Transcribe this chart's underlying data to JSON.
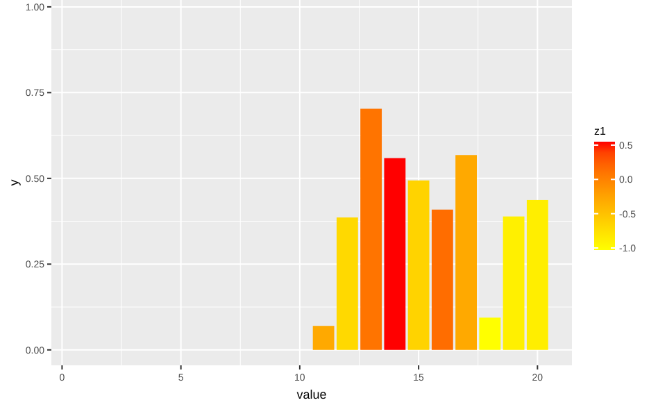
{
  "chart_data": {
    "type": "bar",
    "xlabel": "value",
    "ylabel": "y",
    "clabel": "z1",
    "x": [
      11,
      12,
      13,
      14,
      15,
      16,
      17,
      18,
      19,
      20
    ],
    "values": [
      0.07,
      0.386,
      0.703,
      0.559,
      0.494,
      0.409,
      0.568,
      0.094,
      0.389,
      0.437
    ],
    "cvalues": [
      -0.3,
      -0.7,
      0.1,
      0.55,
      -0.65,
      0.15,
      -0.3,
      -1.03,
      -0.9,
      -0.88
    ],
    "clim": [
      -1.03,
      0.55
    ],
    "cticks": [
      0.5,
      {
        "value": 0,
        "label": "0.0"
      },
      -0.5,
      {
        "value": -1,
        "label": "-1.0"
      }
    ],
    "xlim": [
      -0.45,
      21.45
    ],
    "xticks": [
      0,
      5,
      10,
      15,
      20
    ],
    "ylim": [
      -0.045,
      1.02
    ],
    "yticks": [
      {
        "value": 0,
        "label": "0.00"
      },
      {
        "value": 0.25,
        "label": "0.25"
      },
      {
        "value": 0.5,
        "label": "0.50"
      },
      {
        "value": 0.75,
        "label": "0.75"
      },
      {
        "value": 1,
        "label": "1.00"
      }
    ],
    "grid": true
  }
}
